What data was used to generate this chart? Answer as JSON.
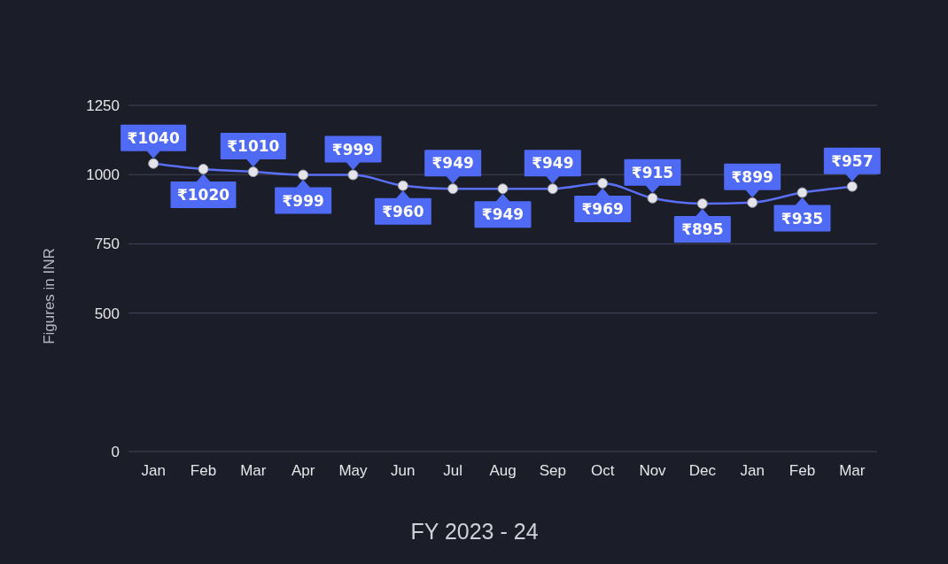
{
  "chart_data": {
    "type": "line",
    "xlabel": "FY 2023 - 24",
    "ylabel": "Figures in INR",
    "categories": [
      "Jan",
      "Feb",
      "Mar",
      "Apr",
      "May",
      "Jun",
      "Jul",
      "Aug",
      "Sep",
      "Oct",
      "Nov",
      "Dec",
      "Jan",
      "Feb",
      "Mar"
    ],
    "series": [
      {
        "color": "#5a6ff5",
        "values": [
          1040,
          1020,
          1010,
          999,
          999,
          960,
          949,
          949,
          949,
          969,
          915,
          895,
          899,
          935,
          957
        ],
        "value_labels": [
          "₹1040",
          "₹1020",
          "₹1010",
          "₹999",
          "₹999",
          "₹960",
          "₹949",
          "₹949",
          "₹949",
          "₹969",
          "₹915",
          "₹895",
          "₹899",
          "₹935",
          "₹957"
        ]
      }
    ],
    "ylim": [
      0,
      1250
    ],
    "yticks": [
      0,
      500,
      750,
      1000,
      1250
    ],
    "grid": "y",
    "marker": "circle"
  }
}
